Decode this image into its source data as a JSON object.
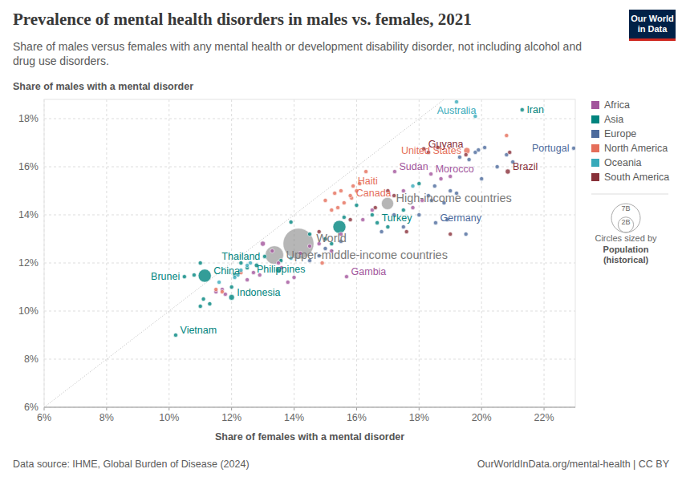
{
  "chart_data": {
    "type": "scatter",
    "title": "Prevalence of mental health disorders in males vs. females, 2021",
    "subtitle": "Share of males versus females with any mental health or development disability disorder, not including alcohol and drug use disorders.",
    "y_label": "Share of males with a mental disorder",
    "x_label": "Share of females with a mental disorder",
    "source": "Data source: IHME, Global Burden of Disease (2024)",
    "url": "OurWorldInData.org/mental-health | CC BY",
    "logo": "Our World in Data",
    "xlim": [
      6,
      23
    ],
    "ylim": [
      6,
      18.8
    ],
    "xticks": [
      {
        "value": 6,
        "label": "6%"
      },
      {
        "value": 8,
        "label": "8%"
      },
      {
        "value": 10,
        "label": "10%"
      },
      {
        "value": 12,
        "label": "12%"
      },
      {
        "value": 14,
        "label": "14%"
      },
      {
        "value": 16,
        "label": "16%"
      },
      {
        "value": 18,
        "label": "18%"
      },
      {
        "value": 20,
        "label": "20%"
      },
      {
        "value": 22,
        "label": "22%"
      }
    ],
    "yticks": [
      {
        "value": 6,
        "label": "6%"
      },
      {
        "value": 8,
        "label": "8%"
      },
      {
        "value": 10,
        "label": "10%"
      },
      {
        "value": 12,
        "label": "12%"
      },
      {
        "value": 14,
        "label": "14%"
      },
      {
        "value": 16,
        "label": "16%"
      },
      {
        "value": 18,
        "label": "18%"
      }
    ],
    "grid": true,
    "legend": "right",
    "series": [
      {
        "name": "Africa",
        "color": "#a2559c",
        "x": [
          17.22,
          18.38,
          15.68,
          13.0,
          13.3,
          12.7,
          12.9,
          13.5,
          14.2,
          14.5,
          11.5,
          11.7,
          12.5,
          13.8,
          14.0,
          15.0,
          15.5,
          16.2,
          17.5,
          18.1,
          18.7,
          17.8,
          16.5,
          19.0,
          15.2,
          13.6,
          14.8,
          11.8
        ],
        "values": [
          15.8,
          15.7,
          11.43,
          12.8,
          12.5,
          11.6,
          11.5,
          12.0,
          12.4,
          12.7,
          10.8,
          10.9,
          11.3,
          11.2,
          11.4,
          13.0,
          13.2,
          13.8,
          15.0,
          14.6,
          15.5,
          14.3,
          14.2,
          15.6,
          12.5,
          11.8,
          12.8,
          10.7
        ],
        "sizes": [
          46000000,
          37000000,
          2600000,
          213000000,
          120000000,
          25000000,
          30000000,
          60000000,
          45000000,
          20000000,
          12000000,
          8000000,
          17000000,
          28000000,
          33000000,
          44000000,
          19000000,
          105000000,
          12000000,
          6000000,
          44000000,
          9000000,
          35000000,
          5000000,
          27000000,
          15000000,
          22000000,
          3000000
        ],
        "labels": [
          "Sudan",
          "Morocco",
          "Gambia",
          null,
          null,
          null,
          null,
          null,
          null,
          null,
          null,
          null,
          null,
          null,
          null,
          null,
          null,
          null,
          null,
          null,
          null,
          null,
          null,
          null,
          null,
          null,
          null,
          null
        ]
      },
      {
        "name": "Asia",
        "color": "#00847e",
        "x": [
          21.3,
          16.66,
          13.06,
          11.14,
          10.49,
          12.0,
          13.58,
          10.21,
          15.45,
          11.0,
          10.8,
          11.1,
          11.3,
          11.0,
          12.3,
          12.1,
          12.5,
          13.9,
          14.5,
          15.0,
          15.2,
          16.0,
          16.5,
          17.0,
          17.5,
          12.8,
          13.5,
          12.0,
          15.6,
          18.0
        ],
        "values": [
          18.37,
          13.67,
          12.27,
          11.47,
          11.43,
          10.57,
          12.1,
          9.0,
          13.5,
          12.0,
          11.5,
          10.5,
          10.3,
          10.2,
          12.0,
          11.5,
          11.8,
          13.7,
          13.2,
          13.0,
          12.8,
          14.4,
          14.0,
          13.5,
          14.2,
          11.9,
          11.7,
          11.0,
          13.9,
          15.3
        ],
        "sizes": [
          87000000,
          85000000,
          71000000,
          1425000000,
          440000,
          274000000,
          114000000,
          98000000,
          1408000000,
          17000000,
          7000000,
          33000000,
          26000000,
          3000000,
          10000000,
          32000000,
          23000000,
          9000000,
          36000000,
          19000000,
          44000000,
          5000000,
          10000000,
          34000000,
          4000000,
          167000000,
          231000000,
          52000000,
          43000000,
          7000000
        ],
        "labels": [
          "Iran",
          "Turkey",
          "Thailand",
          "China",
          "Brunei",
          "Indonesia",
          "Philippines",
          "Vietnam",
          null,
          null,
          null,
          null,
          null,
          null,
          null,
          null,
          null,
          null,
          null,
          null,
          null,
          null,
          null,
          null,
          null,
          null,
          null,
          null,
          null,
          null
        ]
      },
      {
        "name": "Europe",
        "color": "#4c6a9c",
        "x": [
          22.95,
          18.53,
          19.8,
          19.3,
          19.6,
          20.5,
          20.8,
          21.0,
          18.5,
          18.3,
          19.0,
          20.0,
          18.8,
          17.5,
          18.9,
          19.5,
          16.8,
          18.0,
          17.2,
          20.1,
          19.2,
          15.5,
          14.8,
          14.5,
          15.0,
          18.4,
          19.9
        ],
        "values": [
          16.77,
          13.67,
          16.6,
          16.4,
          16.3,
          16.0,
          16.5,
          16.2,
          15.2,
          14.8,
          15.0,
          15.5,
          14.5,
          13.5,
          13.8,
          13.2,
          13.3,
          14.0,
          14.0,
          16.8,
          14.9,
          12.9,
          12.3,
          12.1,
          12.6,
          14.6,
          16.7
        ],
        "sizes": [
          10000000,
          83000000,
          67000000,
          5000000,
          11000000,
          10000000,
          47000000,
          9000000,
          60000000,
          6000000,
          17000000,
          65000000,
          4000000,
          38000000,
          4000000,
          2800000,
          10000000,
          9000000,
          5400000,
          600000,
          1900000,
          144000000,
          44000000,
          19000000,
          10000000,
          3000000,
          11000000
        ],
        "labels": [
          "Portugal",
          "Germany",
          null,
          null,
          null,
          null,
          null,
          null,
          null,
          null,
          null,
          null,
          null,
          null,
          null,
          null,
          null,
          null,
          null,
          null,
          null,
          null,
          null,
          null,
          null,
          null,
          null
        ]
      },
      {
        "name": "North America",
        "color": "#e56e5a",
        "x": [
          19.53,
          15.89,
          15.84,
          20.8,
          15.0,
          15.3,
          15.5,
          15.8,
          16.3,
          16.1,
          15.2,
          15.6,
          14.9,
          12.3,
          11.7,
          11.5,
          16.0,
          15.4
        ],
        "values": [
          16.67,
          15.2,
          14.7,
          17.3,
          14.6,
          14.9,
          15.0,
          14.8,
          15.8,
          15.3,
          14.2,
          14.5,
          12.0,
          11.6,
          10.8,
          10.9,
          15.0,
          14.3
        ],
        "sizes": [
          337000000,
          11000000,
          38000000,
          3000000,
          400000,
          1400000,
          11000000,
          2800000,
          100000,
          18000000,
          6500000,
          10000000,
          126000000,
          5200000,
          4400000,
          6300000,
          17000000,
          300000
        ],
        "labels": [
          "United States",
          "Haiti",
          "Canada",
          null,
          null,
          null,
          null,
          null,
          null,
          null,
          null,
          null,
          null,
          null,
          null,
          null,
          null,
          null
        ]
      },
      {
        "name": "Oceania",
        "color": "#38aaba",
        "x": [
          19.2,
          19.8,
          12.3,
          12.6,
          11.6,
          12.2,
          13.9,
          12.1,
          12.5,
          17.8
        ],
        "values": [
          18.7,
          18.1,
          11.7,
          12.0,
          11.2,
          11.5,
          12.2,
          11.4,
          11.9,
          15.2
        ],
        "sizes": [
          26000000,
          5100000,
          900000,
          10000000,
          700000,
          300000,
          200000,
          100000,
          300000,
          100000
        ],
        "labels": [
          "Australia",
          null,
          null,
          null,
          null,
          null,
          null,
          null,
          null,
          null
        ]
      },
      {
        "name": "South America",
        "color": "#883039",
        "x": [
          18.15,
          20.84,
          16.6,
          17.2,
          18.3,
          18.6,
          17.6,
          19.0,
          15.8,
          19.5,
          14.8,
          17.0,
          20.9
        ],
        "values": [
          16.75,
          15.8,
          14.3,
          14.8,
          16.6,
          16.8,
          13.3,
          13.2,
          13.8,
          16.5,
          13.3,
          15.0,
          16.6
        ],
        "sizes": [
          800000,
          214000000,
          28000000,
          12000000,
          45000000,
          19000000,
          33000000,
          3400000,
          6700000,
          51000000,
          600000,
          18000000,
          17000000
        ],
        "labels": [
          "Guyana",
          "Brazil",
          null,
          null,
          null,
          null,
          null,
          null,
          null,
          null,
          null,
          null,
          null
        ]
      }
    ],
    "aggregates": {
      "color": "#7a7a7a",
      "x": [
        14.14,
        16.99,
        13.37
      ],
      "values": [
        12.8,
        14.47,
        12.33
      ],
      "sizes": [
        7950000000,
        1240000000,
        2840000000
      ],
      "labels": [
        "World",
        "High-income countries",
        "Upper-middle-income countries"
      ]
    },
    "size_legend": {
      "title": "Circles sized by",
      "variable": "Population (historical)",
      "values": [
        {
          "value": 7000000000,
          "label": "7B"
        },
        {
          "value": 2000000000,
          "label": "2B"
        }
      ]
    }
  }
}
